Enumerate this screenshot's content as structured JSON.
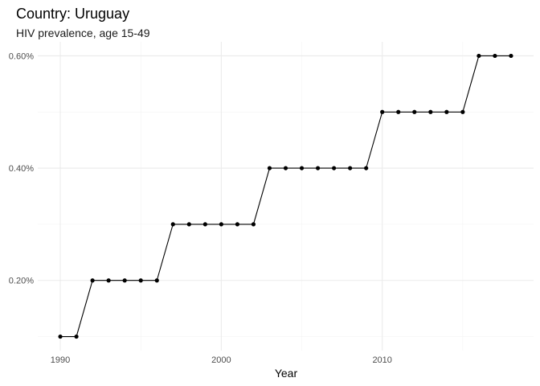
{
  "chart_data": {
    "type": "line",
    "title": "Country: Uruguay",
    "subtitle": "HIV prevalence, age 15-49",
    "xlabel": "Year",
    "ylabel": "",
    "x": [
      1990,
      1991,
      1992,
      1993,
      1994,
      1995,
      1996,
      1997,
      1998,
      1999,
      2000,
      2001,
      2002,
      2003,
      2004,
      2005,
      2006,
      2007,
      2008,
      2009,
      2010,
      2011,
      2012,
      2013,
      2014,
      2015,
      2016,
      2017,
      2018
    ],
    "series": [
      {
        "values": [
          0.1,
          0.1,
          0.2,
          0.2,
          0.2,
          0.2,
          0.2,
          0.3,
          0.3,
          0.3,
          0.3,
          0.3,
          0.3,
          0.4,
          0.4,
          0.4,
          0.4,
          0.4,
          0.4,
          0.4,
          0.5,
          0.5,
          0.5,
          0.5,
          0.5,
          0.5,
          0.6,
          0.6,
          0.6
        ],
        "color": "#000000"
      }
    ],
    "xlim": [
      1988.6,
      2019.4
    ],
    "ylim": [
      0.075,
      0.625
    ],
    "x_ticks": [
      1990,
      2000,
      2010
    ],
    "x_tick_labels": [
      "1990",
      "2000",
      "2010"
    ],
    "y_ticks": [
      0.2,
      0.4,
      0.6
    ],
    "y_tick_labels": [
      "0.20%",
      "0.40%",
      "0.60%"
    ],
    "x_minor_ticks": [
      1995,
      2005,
      2015
    ],
    "y_minor_ticks": [
      0.1,
      0.3,
      0.5
    ],
    "grid": true,
    "legend": "none"
  }
}
